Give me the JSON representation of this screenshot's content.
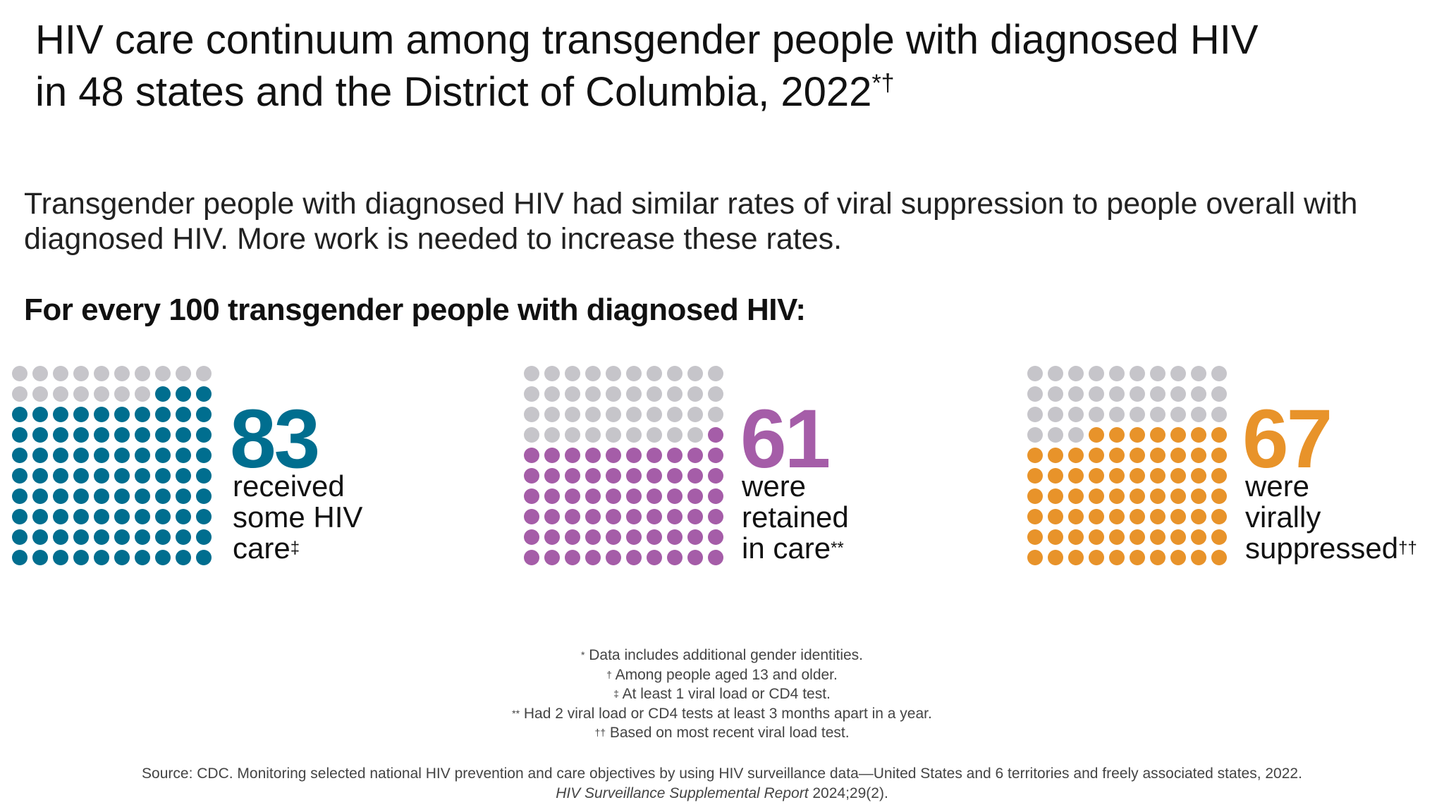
{
  "title": {
    "line1": "HIV care continuum among transgender people with diagnosed HIV",
    "line2": "in 48 states and the District of Columbia, 2022",
    "marks": "*†"
  },
  "subtitle": "Transgender people with diagnosed HIV had similar rates of viral suppression to people overall with diagnosed HIV. More work is needed to increase these rates.",
  "lead": "For every 100 transgender people with diagnosed HIV:",
  "colors": {
    "empty_dot": "#c6c5ca",
    "care": "#006e8f",
    "retained": "#a55da8",
    "suppressed": "#e8932a"
  },
  "chart_data": [
    {
      "type": "waffle",
      "total": 100,
      "value": 83,
      "value_label": "83",
      "label_lines": [
        "received",
        "some HIV",
        "care"
      ],
      "label_mark": "‡",
      "color": "#006e8f"
    },
    {
      "type": "waffle",
      "total": 100,
      "value": 61,
      "value_label": "61",
      "label_lines": [
        "were",
        "retained",
        "in care"
      ],
      "label_mark": "**",
      "color": "#a55da8"
    },
    {
      "type": "waffle",
      "total": 100,
      "value": 67,
      "value_label": "67",
      "label_lines": [
        "were",
        "virally",
        "suppressed"
      ],
      "label_mark": "††",
      "color": "#e8932a"
    }
  ],
  "footnotes": [
    {
      "mark": "*",
      "text": " Data includes additional gender identities."
    },
    {
      "mark": "†",
      "text": " Among people aged 13 and older."
    },
    {
      "mark": "‡",
      "text": " At least 1 viral load or CD4 test."
    },
    {
      "mark": "**",
      "text": " Had 2 viral load or CD4 tests at least 3 months apart in a year."
    },
    {
      "mark": "††",
      "text": " Based on most recent viral load test."
    }
  ],
  "source": {
    "line1": "Source: CDC. Monitoring selected national HIV prevention and care objectives by using HIV surveillance data—United States and 6 territories and freely associated states, 2022.",
    "journal": "HIV Surveillance Supplemental Report",
    "citation": " 2024;29(2)."
  }
}
